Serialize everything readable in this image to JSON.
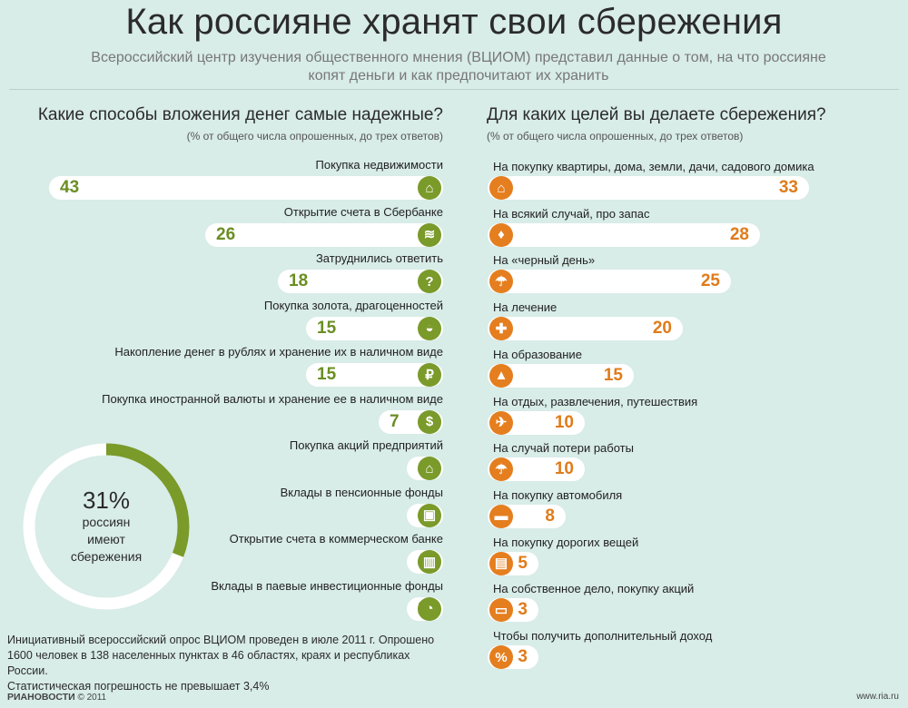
{
  "title": "Как россияне хранят свои сбережения",
  "subtitle_line1": "Всероссийский центр изучения общественного мнения (ВЦИОМ) представил данные о том, на что россияне",
  "subtitle_line2": "копят деньги и как предпочитают их хранить",
  "colors": {
    "green": "#7a9a2a",
    "orange": "#e57e1e",
    "background": "#d8ece8"
  },
  "chart_data": [
    {
      "type": "bar",
      "title": "Какие способы вложения денег самые надежные?",
      "subtitle": "(% от общего числа опрошенных, до трех ответов)",
      "unit": "%",
      "rows": [
        {
          "label": "Покупка недвижимости",
          "value": 43,
          "icon": "house-icon",
          "glyph": "⌂"
        },
        {
          "label": "Открытие счета в Сбербанке",
          "value": 26,
          "icon": "sberbank-icon",
          "glyph": "≋"
        },
        {
          "label": "Затруднились ответить",
          "value": 18,
          "icon": "question-icon",
          "glyph": "?"
        },
        {
          "label": "Покупка золота, драгоценностей",
          "value": 15,
          "icon": "gold-icon",
          "glyph": "◒"
        },
        {
          "label": "Накопление денег в рублях и хранение их в наличном виде",
          "value": 15,
          "icon": "ruble-icon",
          "glyph": "₽"
        },
        {
          "label": "Покупка иностранной валюты и хранение ее в наличном виде",
          "value": 7,
          "icon": "dollar-icon",
          "glyph": "$"
        },
        {
          "label": "Покупка акций предприятий",
          "value": 4,
          "icon": "factory-icon",
          "glyph": "⌂"
        },
        {
          "label": "Вклады в пенсионные фонды",
          "value": 4,
          "icon": "wallet-icon",
          "glyph": "▣"
        },
        {
          "label": "Открытие счета в коммерческом банке",
          "value": 4,
          "icon": "bank-icon",
          "glyph": "▥"
        },
        {
          "label": "Вклады в паевые инвестиционные фонды",
          "value": 2,
          "icon": "pie-chart-icon",
          "glyph": "◔"
        }
      ]
    },
    {
      "type": "bar",
      "title": "Для каких целей вы делаете сбережения?",
      "subtitle": "(% от общего числа опрошенных, до трех ответов)",
      "unit": "%",
      "rows": [
        {
          "label": "На покупку квартиры, дома, земли, дачи, садового домика",
          "value": 33,
          "icon": "house-icon",
          "glyph": "⌂"
        },
        {
          "label": "На всякий случай, про запас",
          "value": 28,
          "icon": "money-bag-icon",
          "glyph": "♦"
        },
        {
          "label": "На «черный день»",
          "value": 25,
          "icon": "umbrella-icon",
          "glyph": "☂"
        },
        {
          "label": "На лечение",
          "value": 20,
          "icon": "medical-cross-icon",
          "glyph": "✚"
        },
        {
          "label": "На образование",
          "value": 15,
          "icon": "graduation-cap-icon",
          "glyph": "▲"
        },
        {
          "label": "На отдых, развлечения, путешествия",
          "value": 10,
          "icon": "airplane-icon",
          "glyph": "✈"
        },
        {
          "label": "На случай потери работы",
          "value": 10,
          "icon": "umbrella-icon",
          "glyph": "☂"
        },
        {
          "label": "На покупку автомобиля",
          "value": 8,
          "icon": "car-icon",
          "glyph": "▬"
        },
        {
          "label": "На покупку дорогих вещей",
          "value": 5,
          "icon": "gift-icon",
          "glyph": "▤"
        },
        {
          "label": "На собственное дело, покупку акций",
          "value": 3,
          "icon": "briefcase-icon",
          "glyph": "▭"
        },
        {
          "label": "Чтобы получить дополнительный доход",
          "value": 3,
          "icon": "percent-icon",
          "glyph": "%"
        }
      ]
    },
    {
      "type": "pie",
      "title": "31%",
      "values": [
        31,
        69
      ],
      "labels": [
        "имеют сбережения",
        ""
      ],
      "caption_lines": [
        "россиян",
        "имеют",
        "сбережения"
      ]
    }
  ],
  "footnote_lines": [
    "Инициативный всероссийский опрос ВЦИОМ проведен в июле 2011 г. Опрошено",
    "1600 человек в 138 населенных пунктах в 46 областях, краях и республиках России.",
    "Статистическая погрешность не превышает 3,4%"
  ],
  "footer": {
    "brand": "РИАНОВОСТИ",
    "copyright": "© 2011",
    "site": "www.ria.ru"
  }
}
